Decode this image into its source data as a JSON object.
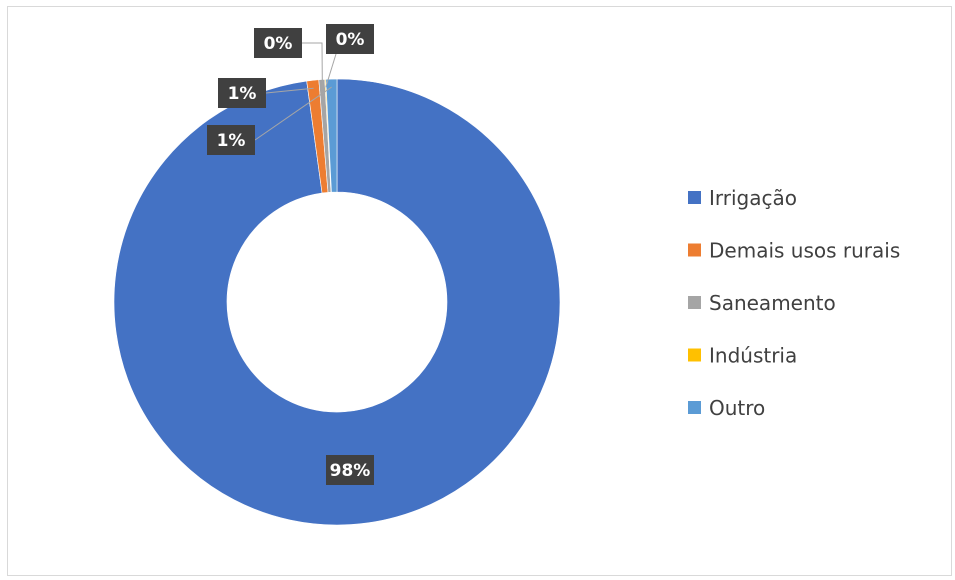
{
  "chart_data": {
    "type": "pie",
    "variant": "doughnut",
    "title": "",
    "categories": [
      "Irrigação",
      "Demais usos rurais",
      "Saneamento",
      "Indústria",
      "Outro"
    ],
    "values": [
      98,
      1,
      0,
      0,
      1
    ],
    "data_labels": [
      "98%",
      "1%",
      "0%",
      "0%",
      "1%"
    ],
    "colors": [
      "#4472c4",
      "#ed7d31",
      "#a5a5a5",
      "#ffc000",
      "#5b9bd5"
    ],
    "legend_position": "right",
    "data_label_style": {
      "background": "#404040",
      "text_color": "#ffffff"
    }
  }
}
